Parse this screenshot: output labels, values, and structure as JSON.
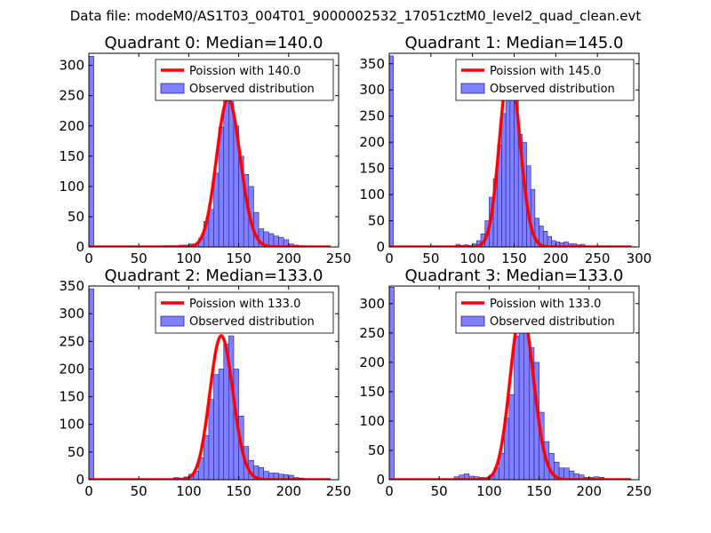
{
  "suptitle": "Data file: modeM0/AS1T03_004T01_9000002532_17051cztM0_level2_quad_clean.evt",
  "colors": {
    "hist_fill": "#8080ff",
    "hist_edge": "#2020a0",
    "line": "#ff0000",
    "axis": "#000000"
  },
  "chart_data": [
    {
      "type": "bar",
      "title": "Quadrant 0: Median=140.0",
      "xlim": [
        0,
        250
      ],
      "ylim": [
        0,
        320
      ],
      "xticks": [
        0,
        50,
        100,
        150,
        200,
        250
      ],
      "yticks": [
        0,
        50,
        100,
        150,
        200,
        250,
        300
      ],
      "legend": {
        "placement": "top-right",
        "line_label": "Poission with 140.0",
        "bar_label": "Observed distribution"
      },
      "bin_width": 5,
      "bins": [
        [
          0,
          315
        ],
        [
          75,
          2
        ],
        [
          80,
          2
        ],
        [
          85,
          2
        ],
        [
          90,
          3
        ],
        [
          95,
          3
        ],
        [
          100,
          5
        ],
        [
          105,
          5
        ],
        [
          110,
          15
        ],
        [
          115,
          42
        ],
        [
          120,
          62
        ],
        [
          125,
          122
        ],
        [
          130,
          198
        ],
        [
          135,
          245
        ],
        [
          140,
          240
        ],
        [
          145,
          200
        ],
        [
          150,
          150
        ],
        [
          155,
          120
        ],
        [
          160,
          100
        ],
        [
          165,
          57
        ],
        [
          170,
          30
        ],
        [
          175,
          25
        ],
        [
          180,
          22
        ],
        [
          185,
          18
        ],
        [
          190,
          16
        ],
        [
          195,
          12
        ],
        [
          200,
          5
        ],
        [
          205,
          3
        ],
        [
          210,
          2
        ]
      ],
      "poisson_mean": 140
    },
    {
      "type": "bar",
      "title": "Quadrant 1: Median=145.0",
      "xlim": [
        0,
        300
      ],
      "ylim": [
        0,
        370
      ],
      "xticks": [
        0,
        50,
        100,
        150,
        200,
        250,
        300
      ],
      "yticks": [
        0,
        50,
        100,
        150,
        200,
        250,
        300,
        350
      ],
      "legend": {
        "placement": "top-right",
        "line_label": "Poission with 145.0",
        "bar_label": "Observed distribution"
      },
      "bin_width": 5,
      "bins": [
        [
          0,
          365
        ],
        [
          80,
          5
        ],
        [
          85,
          3
        ],
        [
          90,
          4
        ],
        [
          95,
          3
        ],
        [
          100,
          6
        ],
        [
          105,
          12
        ],
        [
          110,
          25
        ],
        [
          115,
          50
        ],
        [
          120,
          95
        ],
        [
          125,
          130
        ],
        [
          130,
          195
        ],
        [
          135,
          255
        ],
        [
          140,
          305
        ],
        [
          145,
          345
        ],
        [
          150,
          280
        ],
        [
          155,
          215
        ],
        [
          160,
          200
        ],
        [
          165,
          155
        ],
        [
          170,
          110
        ],
        [
          175,
          55
        ],
        [
          180,
          40
        ],
        [
          185,
          30
        ],
        [
          190,
          20
        ],
        [
          195,
          12
        ],
        [
          200,
          10
        ],
        [
          205,
          8
        ],
        [
          210,
          10
        ],
        [
          215,
          6
        ],
        [
          220,
          6
        ],
        [
          225,
          4
        ],
        [
          230,
          5
        ]
      ],
      "poisson_mean": 145
    },
    {
      "type": "bar",
      "title": "Quadrant 2: Median=133.0",
      "xlim": [
        0,
        250
      ],
      "ylim": [
        0,
        350
      ],
      "xticks": [
        0,
        50,
        100,
        150,
        200,
        250
      ],
      "yticks": [
        0,
        50,
        100,
        150,
        200,
        250,
        300,
        350
      ],
      "legend": {
        "placement": "top-right",
        "line_label": "Poission with 133.0",
        "bar_label": "Observed distribution"
      },
      "bin_width": 5,
      "bins": [
        [
          0,
          345
        ],
        [
          85,
          4
        ],
        [
          90,
          3
        ],
        [
          95,
          5
        ],
        [
          100,
          10
        ],
        [
          105,
          15
        ],
        [
          110,
          40
        ],
        [
          115,
          80
        ],
        [
          120,
          145
        ],
        [
          125,
          190
        ],
        [
          130,
          200
        ],
        [
          135,
          245
        ],
        [
          140,
          260
        ],
        [
          145,
          200
        ],
        [
          150,
          115
        ],
        [
          155,
          60
        ],
        [
          160,
          35
        ],
        [
          165,
          25
        ],
        [
          170,
          22
        ],
        [
          175,
          15
        ],
        [
          180,
          12
        ],
        [
          185,
          12
        ],
        [
          190,
          10
        ],
        [
          195,
          9
        ],
        [
          200,
          8
        ],
        [
          205,
          4
        ],
        [
          210,
          3
        ]
      ],
      "poisson_mean": 133
    },
    {
      "type": "bar",
      "title": "Quadrant 3: Median=133.0",
      "xlim": [
        0,
        250
      ],
      "ylim": [
        0,
        330
      ],
      "xticks": [
        0,
        50,
        100,
        150,
        200,
        250
      ],
      "yticks": [
        0,
        50,
        100,
        150,
        200,
        250,
        300
      ],
      "legend": {
        "placement": "top-right",
        "line_label": "Poission with 133.0",
        "bar_label": "Observed distribution"
      },
      "bin_width": 5,
      "bins": [
        [
          0,
          328
        ],
        [
          65,
          5
        ],
        [
          70,
          8
        ],
        [
          75,
          10
        ],
        [
          80,
          6
        ],
        [
          85,
          5
        ],
        [
          90,
          4
        ],
        [
          95,
          3
        ],
        [
          100,
          8
        ],
        [
          105,
          20
        ],
        [
          110,
          45
        ],
        [
          115,
          105
        ],
        [
          120,
          145
        ],
        [
          125,
          245
        ],
        [
          130,
          290
        ],
        [
          135,
          280
        ],
        [
          140,
          225
        ],
        [
          145,
          200
        ],
        [
          150,
          115
        ],
        [
          155,
          65
        ],
        [
          160,
          45
        ],
        [
          165,
          30
        ],
        [
          170,
          20
        ],
        [
          175,
          20
        ],
        [
          180,
          15
        ],
        [
          185,
          10
        ],
        [
          190,
          8
        ],
        [
          195,
          4
        ],
        [
          200,
          4
        ],
        [
          205,
          5
        ],
        [
          210,
          4
        ]
      ],
      "poisson_mean": 133
    }
  ]
}
